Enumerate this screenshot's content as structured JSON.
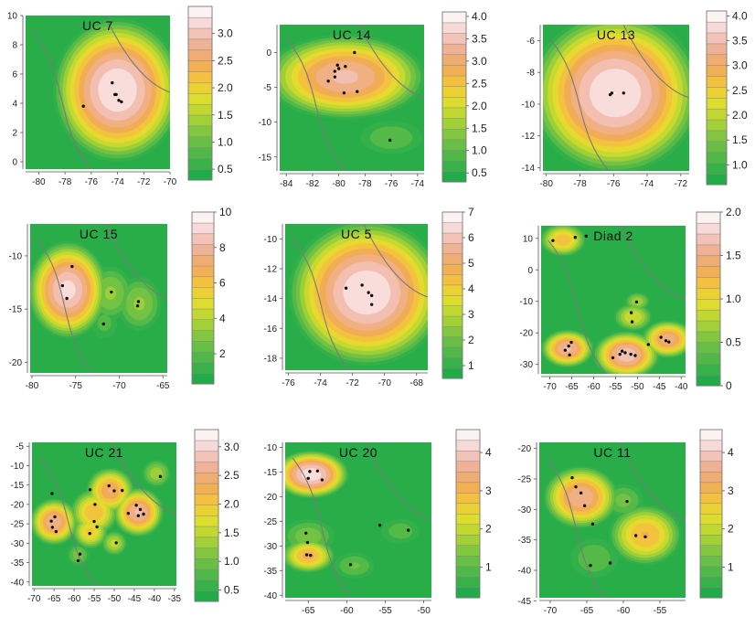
{
  "panels": [
    {
      "title": "UC  7",
      "xticks": [
        -80,
        -78,
        -76,
        -74,
        -72,
        -70
      ],
      "yticks": [
        0,
        2,
        4,
        6,
        8,
        10
      ],
      "xlim": [
        -81,
        -70
      ],
      "ylim": [
        -0.5,
        10
      ],
      "cb_ticks": [
        "3.0",
        "2.5",
        "2.0",
        "1.5",
        "1.0",
        "0.5"
      ],
      "cb_range": [
        0.3,
        3.5
      ],
      "hotspots": [
        {
          "x": -74.0,
          "y": 4.9,
          "r": 3.2,
          "v": 3.5
        }
      ],
      "points": [
        [
          -74.4,
          5.4
        ],
        [
          -74.1,
          4.6
        ],
        [
          -73.9,
          4.2
        ],
        [
          -73.7,
          4.1
        ],
        [
          -76.6,
          3.8
        ],
        [
          -74.2,
          4.6
        ]
      ]
    },
    {
      "title": "UC  14",
      "xticks": [
        -84,
        -82,
        -80,
        -78,
        -76,
        -74
      ],
      "yticks": [
        0,
        -5,
        -10,
        -15
      ],
      "xlim": [
        -84.5,
        -73.5
      ],
      "ylim": [
        -17,
        4
      ],
      "cb_ticks": [
        "4.0",
        "3.5",
        "3.0",
        "2.5",
        "2.0",
        "1.5",
        "1.0",
        "0.5"
      ],
      "cb_range": [
        0.3,
        4.1
      ],
      "hotspots": [
        {
          "x": -79.5,
          "y": -3.5,
          "r": 4.0,
          "v": 3.5
        },
        {
          "x": -76,
          "y": -12.2,
          "r": 1.8,
          "v": 1.0
        }
      ],
      "points": [
        [
          -78.8,
          0.0
        ],
        [
          -80.1,
          -1.8
        ],
        [
          -80.0,
          -2.3
        ],
        [
          -79.5,
          -2.0
        ],
        [
          -80.3,
          -3.5
        ],
        [
          -78.6,
          -5.6
        ],
        [
          -79.6,
          -5.8
        ],
        [
          -80.8,
          -4.1
        ],
        [
          -80.3,
          -2.7
        ],
        [
          -76.1,
          -12.6
        ]
      ]
    },
    {
      "title": "UC  13",
      "xticks": [
        -80,
        -78,
        -76,
        -74,
        -72
      ],
      "yticks": [
        -6,
        -8,
        -10,
        -12,
        -14
      ],
      "xlim": [
        -80.2,
        -71.5
      ],
      "ylim": [
        -14.2,
        -5
      ],
      "cb_ticks": [
        "4.0",
        "3.5",
        "3.0",
        "2.5",
        "2.0",
        "1.5",
        "1.0"
      ],
      "cb_range": [
        0.6,
        4.1
      ],
      "hotspots": [
        {
          "x": -75.9,
          "y": -9.3,
          "r": 3.3,
          "v": 4.1
        }
      ],
      "points": [
        [
          -76.2,
          -9.4
        ],
        [
          -75.4,
          -9.3
        ],
        [
          -76.1,
          -9.3
        ]
      ]
    },
    {
      "title": "UC  15",
      "xticks": [
        -80,
        -75,
        -70,
        -65
      ],
      "yticks": [
        -10,
        -15,
        -20
      ],
      "xlim": [
        -80.2,
        -64.5
      ],
      "ylim": [
        -21,
        -7
      ],
      "cb_ticks": [
        "10",
        "8",
        "6",
        "4",
        "2"
      ],
      "cb_range": [
        0.3,
        10
      ],
      "hotspots": [
        {
          "x": -75.9,
          "y": -13.2,
          "r": 3.0,
          "v": 9.5
        },
        {
          "x": -71,
          "y": -13.5,
          "r": 1.8,
          "v": 3.5
        },
        {
          "x": -67.7,
          "y": -14.5,
          "r": 1.8,
          "v": 3.5
        },
        {
          "x": -71.7,
          "y": -16.3,
          "r": 1.2,
          "v": 2.0
        }
      ],
      "points": [
        [
          -75.4,
          -11.0
        ],
        [
          -76.5,
          -12.8
        ],
        [
          -76.0,
          -14.0
        ],
        [
          -70.9,
          -13.4
        ],
        [
          -67.8,
          -14.3
        ],
        [
          -67.9,
          -14.7
        ],
        [
          -71.8,
          -16.4
        ]
      ]
    },
    {
      "title": "UC  5",
      "xticks": [
        -76,
        -74,
        -72,
        -70,
        -68
      ],
      "yticks": [
        -10,
        -12,
        -14,
        -16,
        -18
      ],
      "xlim": [
        -76.2,
        -67.3
      ],
      "ylim": [
        -18.8,
        -9
      ],
      "cb_ticks": [
        "7",
        "6",
        "5",
        "4",
        "3",
        "2",
        "1"
      ],
      "cb_range": [
        0.5,
        7
      ],
      "hotspots": [
        {
          "x": -71.1,
          "y": -13.6,
          "r": 3.2,
          "v": 7.0
        }
      ],
      "points": [
        [
          -72.4,
          -13.3
        ],
        [
          -71.4,
          -13.1
        ],
        [
          -71.0,
          -13.6
        ],
        [
          -70.8,
          -13.8
        ],
        [
          -70.8,
          -14.4
        ]
      ]
    },
    {
      "title": "Diad  2",
      "xticks": [
        -70,
        -65,
        -60,
        -55,
        -50,
        -45,
        -40
      ],
      "yticks": [
        10,
        0,
        -10,
        -20,
        -30
      ],
      "xlim": [
        -72,
        -39
      ],
      "ylim": [
        -33,
        14
      ],
      "cb_ticks": [
        "2.0",
        "1.5",
        "1.0",
        "0.5",
        "0"
      ],
      "cb_range": [
        0,
        2.0
      ],
      "hotspots": [
        {
          "x": -66,
          "y": -25,
          "r": 4.0,
          "v": 1.7
        },
        {
          "x": -52.5,
          "y": -27,
          "r": 5.0,
          "v": 1.8
        },
        {
          "x": -43,
          "y": -22,
          "r": 4.0,
          "v": 1.6
        },
        {
          "x": -67,
          "y": 9.5,
          "r": 3.5,
          "v": 1.3
        },
        {
          "x": -51,
          "y": -15,
          "r": 3.0,
          "v": 1.0
        },
        {
          "x": -50,
          "y": -10,
          "r": 2.0,
          "v": 0.8
        }
      ],
      "points": [
        [
          -69.3,
          9.3
        ],
        [
          -64.2,
          10.3
        ],
        [
          -61.7,
          10.7
        ],
        [
          -65.7,
          -24.2
        ],
        [
          -65.1,
          -23.0
        ],
        [
          -66.5,
          -25.5
        ],
        [
          -65.5,
          -27.0
        ],
        [
          -54.0,
          -26.8
        ],
        [
          -52.8,
          -26.3
        ],
        [
          -51.5,
          -26.8
        ],
        [
          -50.5,
          -27.2
        ],
        [
          -53.5,
          -25.8
        ],
        [
          -51.4,
          -13.6
        ],
        [
          -51.2,
          -16.5
        ],
        [
          -50.2,
          -10.2
        ],
        [
          -44.6,
          -21.4
        ],
        [
          -43.5,
          -22.5
        ],
        [
          -42.8,
          -22.9
        ],
        [
          -47.5,
          -23.7
        ],
        [
          -55.6,
          -27.9
        ]
      ]
    },
    {
      "title": "UC  21",
      "xticks": [
        -70,
        -65,
        -60,
        -55,
        -50,
        -45,
        -40,
        -35
      ],
      "yticks": [
        -5,
        -10,
        -15,
        -20,
        -25,
        -30,
        -35,
        -40
      ],
      "xlim": [
        -70.5,
        -34.5
      ],
      "ylim": [
        -41,
        -4
      ],
      "cb_ticks": [
        "3.0",
        "2.5",
        "2.0",
        "1.5",
        "1.0",
        "0.5"
      ],
      "cb_range": [
        0.3,
        3.3
      ],
      "hotspots": [
        {
          "x": -65,
          "y": -24.5,
          "r": 4.0,
          "v": 2.7
        },
        {
          "x": -55,
          "y": -22,
          "r": 4.0,
          "v": 2.2
        },
        {
          "x": -51,
          "y": -16.5,
          "r": 4.0,
          "v": 2.5
        },
        {
          "x": -44,
          "y": -22,
          "r": 4.2,
          "v": 2.8
        },
        {
          "x": -56,
          "y": -27,
          "r": 3.0,
          "v": 2.0
        },
        {
          "x": -50,
          "y": -30,
          "r": 2.2,
          "v": 1.5
        },
        {
          "x": -39.5,
          "y": -12,
          "r": 2.5,
          "v": 1.3
        },
        {
          "x": -59,
          "y": -33,
          "r": 2.0,
          "v": 1.0
        }
      ],
      "points": [
        [
          -65.7,
          -24.3
        ],
        [
          -64.8,
          -23.2
        ],
        [
          -65.4,
          -25.9
        ],
        [
          -64.5,
          -27.0
        ],
        [
          -56.0,
          -16.2
        ],
        [
          -54.8,
          -20.0
        ],
        [
          -54.3,
          -25.8
        ],
        [
          -56.1,
          -27.5
        ],
        [
          -55.0,
          -24.4
        ],
        [
          -51.3,
          -15.2
        ],
        [
          -50.0,
          -16.5
        ],
        [
          -48.0,
          -16.4
        ],
        [
          -44.5,
          -20.2
        ],
        [
          -43.5,
          -21.3
        ],
        [
          -42.7,
          -22.5
        ],
        [
          -44.0,
          -22.9
        ],
        [
          -46.5,
          -22.3
        ],
        [
          -49.5,
          -29.9
        ],
        [
          -58.5,
          -32.8
        ],
        [
          -59.0,
          -34.5
        ],
        [
          -38.5,
          -12.8
        ],
        [
          -65.5,
          -17.2
        ]
      ]
    },
    {
      "title": "UC  20",
      "xticks": [
        -65,
        -60,
        -55,
        -50
      ],
      "yticks": [
        -10,
        -15,
        -20,
        -25,
        -30,
        -35,
        -40
      ],
      "xlim": [
        -68,
        -49
      ],
      "ylim": [
        -40.5,
        -9
      ],
      "cb_ticks": [
        "4",
        "3",
        "2",
        "1"
      ],
      "cb_range": [
        0.2,
        4.6
      ],
      "hotspots": [
        {
          "x": -64.6,
          "y": -15.5,
          "r": 3.2,
          "v": 4.5
        },
        {
          "x": -65,
          "y": -32,
          "r": 2.3,
          "v": 3.2
        },
        {
          "x": -65,
          "y": -28,
          "r": 2.5,
          "v": 1.4
        },
        {
          "x": -59,
          "y": -34,
          "r": 2.0,
          "v": 1.2
        },
        {
          "x": -53,
          "y": -27,
          "r": 2.0,
          "v": 1.0
        }
      ],
      "points": [
        [
          -64.8,
          -14.9
        ],
        [
          -63.8,
          -14.8
        ],
        [
          -65.0,
          -16.3
        ],
        [
          -63.2,
          -16.6
        ],
        [
          -65.3,
          -27.4
        ],
        [
          -65.1,
          -29.3
        ],
        [
          -65.2,
          -31.8
        ],
        [
          -64.7,
          -31.9
        ],
        [
          -59.5,
          -33.8
        ],
        [
          -55.7,
          -25.8
        ],
        [
          -52.0,
          -26.8
        ]
      ]
    },
    {
      "title": "UC  11",
      "xticks": [
        -70,
        -65,
        -60,
        -55
      ],
      "yticks": [
        -20,
        -25,
        -30,
        -35,
        -40,
        -45
      ],
      "xlim": [
        -71.5,
        -51.5
      ],
      "ylim": [
        -44.5,
        -19
      ],
      "cb_ticks": [
        "4",
        "3",
        "2",
        "1"
      ],
      "cb_range": [
        0.2,
        4.6
      ],
      "hotspots": [
        {
          "x": -65.8,
          "y": -28,
          "r": 3.4,
          "v": 3.8
        },
        {
          "x": -57,
          "y": -34.2,
          "r": 3.3,
          "v": 3.1
        },
        {
          "x": -60,
          "y": -28.5,
          "r": 2.0,
          "v": 1.3
        },
        {
          "x": -64,
          "y": -38,
          "r": 2.5,
          "v": 1.1
        }
      ],
      "points": [
        [
          -67.0,
          -24.8
        ],
        [
          -66.5,
          -26.3
        ],
        [
          -65.8,
          -27.3
        ],
        [
          -65.3,
          -29.4
        ],
        [
          -64.2,
          -32.4
        ],
        [
          -59.5,
          -28.7
        ],
        [
          -58.3,
          -34.3
        ],
        [
          -57.0,
          -34.5
        ],
        [
          -64.5,
          -39.2
        ],
        [
          -61.8,
          -38.8
        ]
      ]
    }
  ]
}
